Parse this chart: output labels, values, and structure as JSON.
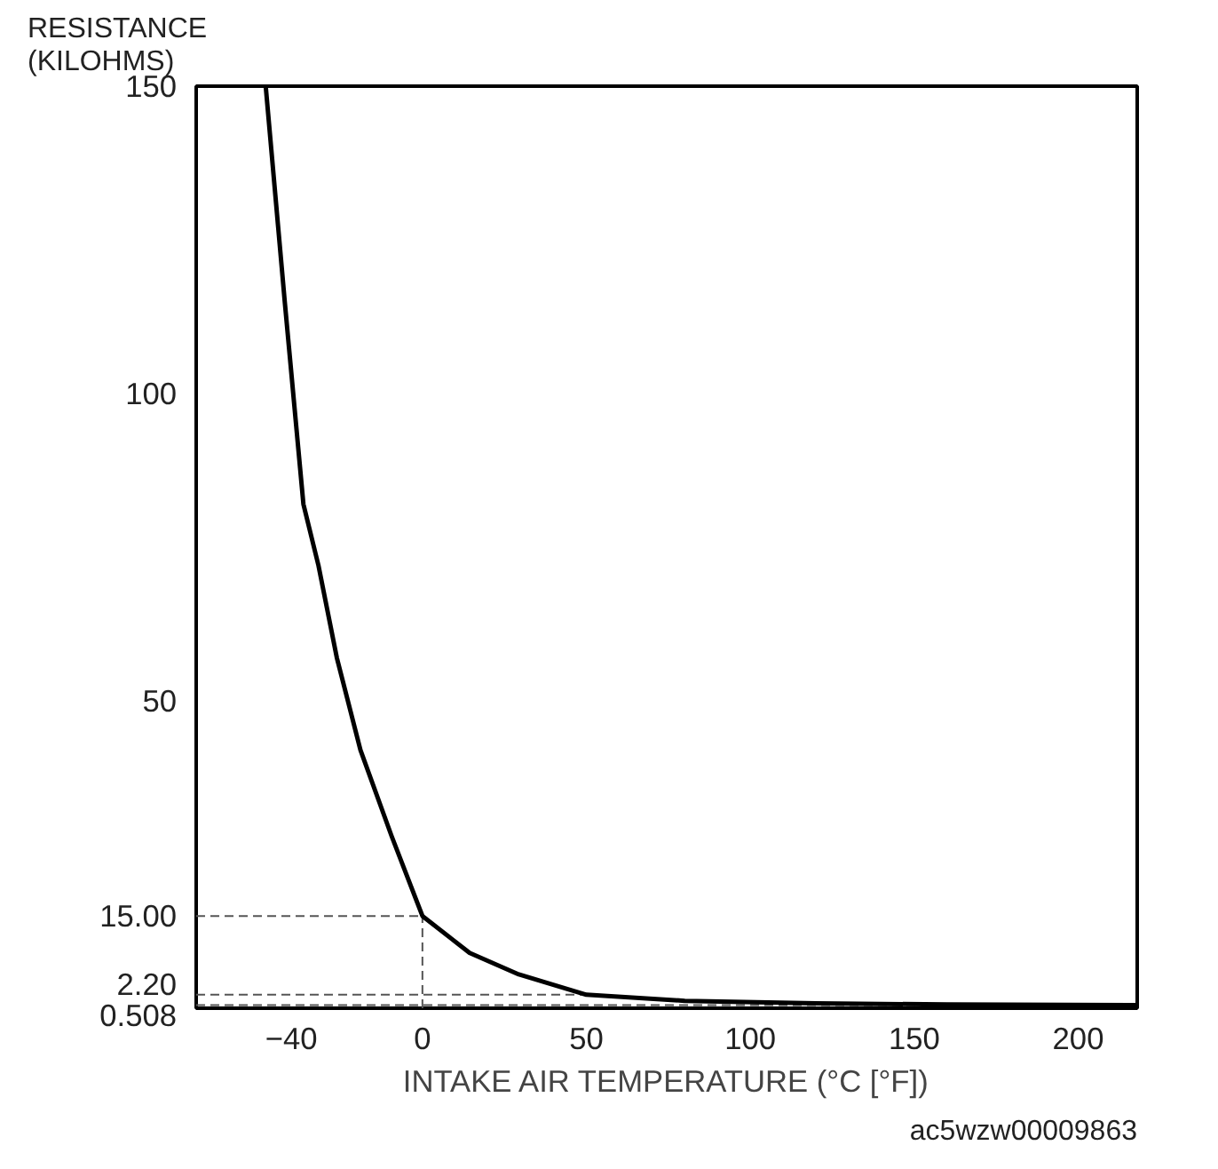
{
  "chart_data": {
    "type": "line",
    "ylabel": "RESISTANCE\n(KILOHMS)",
    "xlabel": "INTAKE AIR TEMPERATURE (°C [°F])",
    "annotations": [
      "ac5wzw00009863"
    ],
    "x": [
      -47.8,
      -42,
      -36.3,
      -31.7,
      -26.1,
      -18.9,
      -9.4,
      0,
      14.4,
      29.4,
      50,
      80,
      120,
      160,
      218
    ],
    "series": [
      {
        "color": "#000000",
        "values": [
          150,
          115,
          82,
          72,
          57,
          42,
          28,
          15,
          9,
          5.5,
          2.2,
          1.2,
          0.8,
          0.6,
          0.5
        ]
      }
    ],
    "xlim": [
      -69,
      218
    ],
    "ylim": [
      0,
      150
    ],
    "xticks": [
      -40,
      0,
      50,
      100,
      150,
      200
    ],
    "yticks": [
      {
        "value": 0.508,
        "label": "0.508"
      },
      {
        "value": 2.2,
        "label": "2.20"
      },
      {
        "value": 15,
        "label": "15.00"
      },
      50,
      100,
      150
    ],
    "ref_lines": [
      {
        "axis": "y",
        "value": 15,
        "color": "#555555",
        "line_style": "dashed"
      },
      {
        "axis": "x",
        "value": 0,
        "color": "#555555",
        "line_style": "dashed"
      },
      {
        "axis": "y",
        "value": 2.2,
        "color": "#555555",
        "line_style": "dashed"
      },
      {
        "axis": "y",
        "value": 0.508,
        "color": "#555555",
        "line_style": "dashed"
      }
    ],
    "grid": false,
    "marker": "none",
    "line_style": "solid"
  }
}
